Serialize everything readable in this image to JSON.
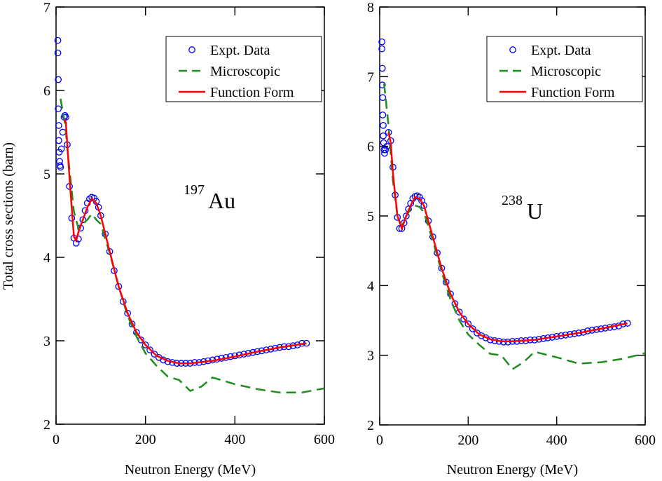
{
  "chart_data": [
    {
      "type": "line",
      "ylabel": "Total cross sections (barn)",
      "xlabel": "Neutron Energy (MeV)",
      "annotation": {
        "mass": "197",
        "element": "Au"
      },
      "xlim": [
        0,
        600
      ],
      "xticks": [
        0,
        200,
        400,
        600
      ],
      "ylim": [
        2,
        7
      ],
      "yticks": [
        2,
        3,
        4,
        5,
        6,
        7
      ],
      "legend": "upper right",
      "series": [
        {
          "name": "Expt. Data",
          "color": "#0000ff",
          "style": "markers",
          "x": [
            4,
            4,
            5,
            5,
            6,
            6,
            7,
            8,
            9,
            10,
            12,
            15,
            18,
            20,
            22,
            25,
            30,
            35,
            40,
            45,
            50,
            55,
            60,
            65,
            70,
            75,
            80,
            85,
            90,
            95,
            100,
            110,
            120,
            130,
            140,
            150,
            160,
            170,
            180,
            190,
            200,
            210,
            220,
            230,
            240,
            250,
            260,
            270,
            280,
            290,
            300,
            310,
            320,
            330,
            340,
            350,
            360,
            370,
            380,
            390,
            400,
            410,
            420,
            430,
            440,
            450,
            460,
            470,
            480,
            490,
            500,
            510,
            520,
            530,
            540,
            550,
            560
          ],
          "values": [
            6.6,
            6.45,
            6.13,
            5.78,
            5.58,
            5.4,
            5.26,
            5.15,
            5.1,
            5.08,
            5.3,
            5.5,
            5.68,
            5.7,
            5.68,
            5.35,
            4.85,
            4.47,
            4.23,
            4.17,
            4.22,
            4.35,
            4.45,
            4.56,
            4.65,
            4.7,
            4.72,
            4.71,
            4.67,
            4.6,
            4.5,
            4.28,
            4.07,
            3.84,
            3.65,
            3.47,
            3.33,
            3.2,
            3.1,
            3.01,
            2.95,
            2.89,
            2.84,
            2.8,
            2.77,
            2.75,
            2.74,
            2.73,
            2.73,
            2.73,
            2.73,
            2.74,
            2.74,
            2.75,
            2.76,
            2.77,
            2.78,
            2.79,
            2.8,
            2.81,
            2.82,
            2.83,
            2.84,
            2.85,
            2.86,
            2.87,
            2.88,
            2.89,
            2.9,
            2.91,
            2.92,
            2.93,
            2.93,
            2.94,
            2.95,
            2.97,
            2.97
          ]
        },
        {
          "name": "Microscopic",
          "color": "#1e8c1e",
          "style": "dashed",
          "x": [
            10,
            20,
            30,
            40,
            50,
            60,
            70,
            80,
            90,
            100,
            120,
            140,
            160,
            180,
            200,
            225,
            250,
            275,
            300,
            325,
            350,
            400,
            450,
            500,
            550,
            600
          ],
          "values": [
            5.9,
            5.6,
            5.05,
            4.55,
            4.35,
            4.4,
            4.45,
            4.52,
            4.45,
            4.4,
            4.05,
            3.65,
            3.3,
            3.05,
            2.85,
            2.7,
            2.57,
            2.53,
            2.4,
            2.45,
            2.56,
            2.48,
            2.42,
            2.38,
            2.38,
            2.43
          ]
        },
        {
          "name": "Function Form",
          "color": "#ff0000",
          "style": "solid",
          "x": [
            18,
            22,
            30,
            40,
            45,
            50,
            60,
            70,
            80,
            90,
            100,
            120,
            140,
            160,
            180,
            200,
            225,
            250,
            275,
            300,
            350,
            400,
            450,
            500,
            560
          ],
          "values": [
            5.65,
            5.62,
            4.95,
            4.25,
            4.2,
            4.3,
            4.45,
            4.6,
            4.7,
            4.65,
            4.5,
            4.07,
            3.65,
            3.33,
            3.1,
            2.95,
            2.82,
            2.76,
            2.73,
            2.73,
            2.76,
            2.81,
            2.87,
            2.92,
            2.97
          ]
        }
      ]
    },
    {
      "type": "line",
      "xlabel": "Neutron Energy (MeV)",
      "annotation": {
        "mass": "238",
        "element": "U"
      },
      "xlim": [
        0,
        600
      ],
      "xticks": [
        0,
        200,
        400,
        600
      ],
      "ylim": [
        2,
        8
      ],
      "yticks": [
        2,
        3,
        4,
        5,
        6,
        7,
        8
      ],
      "legend": "upper right",
      "series": [
        {
          "name": "Expt. Data",
          "color": "#0000ff",
          "style": "markers",
          "x": [
            5,
            5,
            6,
            6,
            7,
            7,
            8,
            8,
            9,
            10,
            11,
            13,
            16,
            20,
            25,
            30,
            35,
            40,
            45,
            50,
            55,
            60,
            65,
            70,
            75,
            80,
            85,
            90,
            95,
            100,
            110,
            120,
            130,
            140,
            150,
            160,
            170,
            180,
            190,
            200,
            210,
            220,
            230,
            240,
            250,
            260,
            270,
            280,
            290,
            300,
            310,
            320,
            330,
            340,
            350,
            360,
            370,
            380,
            390,
            400,
            410,
            420,
            430,
            440,
            450,
            460,
            470,
            480,
            490,
            500,
            510,
            520,
            530,
            540,
            550,
            560
          ],
          "values": [
            7.5,
            7.4,
            7.12,
            6.88,
            6.7,
            6.45,
            6.3,
            6.15,
            6.05,
            5.95,
            5.9,
            5.95,
            6.0,
            6.2,
            6.08,
            5.7,
            5.3,
            4.98,
            4.82,
            4.82,
            4.9,
            5.0,
            5.1,
            5.18,
            5.25,
            5.28,
            5.29,
            5.27,
            5.22,
            5.15,
            4.93,
            4.7,
            4.47,
            4.25,
            4.05,
            3.88,
            3.74,
            3.62,
            3.52,
            3.45,
            3.38,
            3.32,
            3.28,
            3.25,
            3.22,
            3.21,
            3.2,
            3.19,
            3.19,
            3.2,
            3.2,
            3.21,
            3.21,
            3.22,
            3.22,
            3.23,
            3.24,
            3.25,
            3.26,
            3.27,
            3.28,
            3.29,
            3.3,
            3.31,
            3.32,
            3.33,
            3.35,
            3.36,
            3.37,
            3.38,
            3.39,
            3.4,
            3.41,
            3.42,
            3.45,
            3.46
          ]
        },
        {
          "name": "Microscopic",
          "color": "#1e8c1e",
          "style": "dashed",
          "x": [
            10,
            20,
            30,
            40,
            50,
            60,
            70,
            80,
            90,
            100,
            120,
            140,
            160,
            180,
            200,
            225,
            250,
            275,
            300,
            325,
            350,
            400,
            450,
            500,
            550,
            600
          ],
          "values": [
            6.9,
            6.3,
            5.5,
            5.0,
            4.85,
            5.0,
            5.1,
            5.15,
            5.13,
            5.05,
            4.65,
            4.2,
            3.8,
            3.5,
            3.3,
            3.15,
            3.02,
            3.0,
            2.8,
            2.9,
            3.05,
            2.97,
            2.88,
            2.9,
            2.95,
            3.03
          ]
        },
        {
          "name": "Function Form",
          "color": "#ff0000",
          "style": "solid",
          "x": [
            20,
            25,
            30,
            40,
            50,
            60,
            70,
            80,
            90,
            100,
            120,
            140,
            160,
            180,
            200,
            225,
            250,
            275,
            300,
            350,
            400,
            450,
            500,
            560
          ],
          "values": [
            6.2,
            6.05,
            5.6,
            5.0,
            4.82,
            5.0,
            5.15,
            5.27,
            5.25,
            5.15,
            4.7,
            4.25,
            3.88,
            3.62,
            3.45,
            3.3,
            3.23,
            3.2,
            3.2,
            3.22,
            3.27,
            3.32,
            3.38,
            3.46
          ]
        }
      ]
    }
  ]
}
